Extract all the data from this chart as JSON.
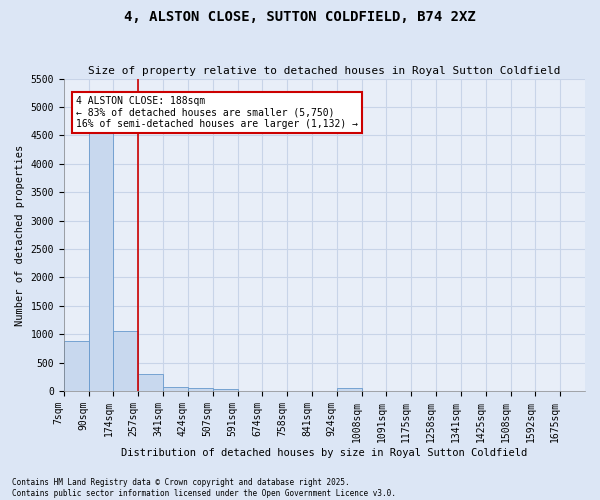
{
  "title": "4, ALSTON CLOSE, SUTTON COLDFIELD, B74 2XZ",
  "subtitle": "Size of property relative to detached houses in Royal Sutton Coldfield",
  "xlabel": "Distribution of detached houses by size in Royal Sutton Coldfield",
  "ylabel": "Number of detached properties",
  "footnote": "Contains HM Land Registry data © Crown copyright and database right 2025.\nContains public sector information licensed under the Open Government Licence v3.0.",
  "bin_labels": [
    "7sqm",
    "90sqm",
    "174sqm",
    "257sqm",
    "341sqm",
    "424sqm",
    "507sqm",
    "591sqm",
    "674sqm",
    "758sqm",
    "841sqm",
    "924sqm",
    "1008sqm",
    "1091sqm",
    "1175sqm",
    "1258sqm",
    "1341sqm",
    "1425sqm",
    "1508sqm",
    "1592sqm",
    "1675sqm"
  ],
  "counts": [
    875,
    4550,
    1050,
    300,
    75,
    60,
    40,
    0,
    0,
    0,
    0,
    50,
    0,
    0,
    0,
    0,
    0,
    0,
    0,
    0
  ],
  "bar_color": "#c8d8ee",
  "bar_edge_color": "#6699cc",
  "vline_bin": 2,
  "vline_color": "#cc0000",
  "annotation_text": "4 ALSTON CLOSE: 188sqm\n← 83% of detached houses are smaller (5,750)\n16% of semi-detached houses are larger (1,132) →",
  "annotation_box_color": "#cc0000",
  "annotation_fill": "white",
  "ylim": [
    0,
    5500
  ],
  "yticks": [
    0,
    500,
    1000,
    1500,
    2000,
    2500,
    3000,
    3500,
    4000,
    4500,
    5000,
    5500
  ],
  "bg_color": "#dce6f5",
  "plot_bg_color": "#e8eef8",
  "grid_color": "#c8d4e8",
  "title_fontsize": 10,
  "subtitle_fontsize": 8,
  "axis_label_fontsize": 7.5,
  "tick_fontsize": 7,
  "annotation_fontsize": 7,
  "footnote_fontsize": 5.5
}
